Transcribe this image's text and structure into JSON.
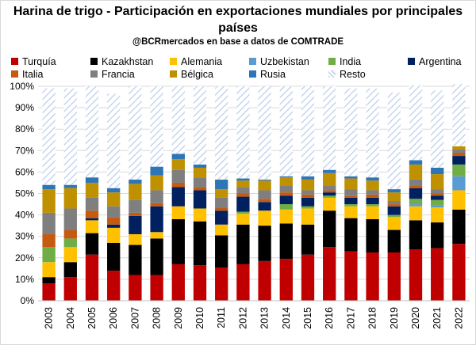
{
  "title": "Harina de trigo - Participación en exportaciones mundiales por principales países",
  "subtitle": "@BCRmercados en base a datos de COMTRADE",
  "chart_data": {
    "type": "bar",
    "stacked": true,
    "categories": [
      "2003",
      "2004",
      "2005",
      "2006",
      "2007",
      "2008",
      "2009",
      "2010",
      "2011",
      "2012",
      "2013",
      "2014",
      "2015",
      "2016",
      "2017",
      "2018",
      "2019",
      "2020",
      "2021",
      "2022"
    ],
    "ylim": [
      0,
      100
    ],
    "yticks": [
      "0%",
      "10%",
      "20%",
      "30%",
      "40%",
      "50%",
      "60%",
      "70%",
      "80%",
      "90%",
      "100%"
    ],
    "grid": true,
    "legend_position": "top",
    "series": [
      {
        "name": "Turquía",
        "color": "#c00000",
        "values": [
          8,
          11,
          21.5,
          14,
          12,
          12,
          17,
          16.5,
          15.5,
          17,
          18.5,
          19.5,
          21.5,
          25,
          23,
          22.5,
          22.5,
          24,
          24.5,
          26.5
        ]
      },
      {
        "name": "Kazakhstan",
        "color": "#000000",
        "values": [
          3,
          7,
          10,
          13,
          14,
          17,
          21,
          20.5,
          15,
          18.5,
          16.5,
          16.5,
          14,
          17,
          15.5,
          15.5,
          10.5,
          13.5,
          12,
          16
        ]
      },
      {
        "name": "Alemania",
        "color": "#ffc000",
        "values": [
          7,
          7,
          6,
          7,
          5,
          3,
          6,
          6,
          5,
          5,
          7,
          6.5,
          7.5,
          6,
          5.5,
          6,
          6,
          6.5,
          7,
          9
        ]
      },
      {
        "name": "Uzbekistan",
        "color": "#5b9bd5",
        "values": [
          0,
          0,
          0,
          0,
          0,
          0,
          0,
          0,
          0,
          0,
          0,
          0,
          0,
          0,
          0,
          0,
          0,
          1,
          1,
          6.5
        ]
      },
      {
        "name": "India",
        "color": "#70ad47",
        "values": [
          7,
          4,
          0,
          0,
          0,
          0,
          0,
          0,
          0,
          1,
          0,
          2.5,
          1,
          1,
          1,
          1,
          1,
          2.5,
          2.5,
          5.5
        ]
      },
      {
        "name": "Argentina",
        "color": "#002060",
        "values": [
          0,
          0,
          1,
          1.5,
          8.5,
          12,
          9,
          8.5,
          6.5,
          7,
          4,
          4,
          4,
          1.5,
          3,
          3,
          4,
          5,
          2,
          4
        ]
      },
      {
        "name": "Italia",
        "color": "#c55a11",
        "values": [
          6,
          4,
          3.5,
          3.5,
          1.5,
          1.5,
          2,
          1.5,
          1.5,
          1.5,
          1.5,
          1.5,
          1.5,
          1,
          1,
          1.5,
          1,
          1,
          1,
          1.5
        ]
      },
      {
        "name": "Francia",
        "color": "#7f7f7f",
        "values": [
          10,
          10,
          6,
          5,
          6,
          6,
          6,
          4.5,
          4.5,
          3,
          4,
          3,
          2,
          2,
          3,
          2,
          1.5,
          3,
          2,
          1.5
        ]
      },
      {
        "name": "Bélgica",
        "color": "#bf9000",
        "values": [
          11,
          9.5,
          7,
          6.5,
          7.5,
          7,
          5,
          4.5,
          4,
          3,
          4.5,
          4,
          5,
          6,
          5,
          4.5,
          4,
          7,
          7,
          1.5
        ]
      },
      {
        "name": "Rusia",
        "color": "#2e75b6",
        "values": [
          2,
          1.5,
          2.5,
          2,
          2,
          4,
          2.5,
          1.5,
          4.5,
          1,
          0.5,
          0.5,
          1.5,
          1.5,
          1,
          1.5,
          1.5,
          2,
          3,
          0
        ]
      },
      {
        "name": "Resto",
        "color": "#dae3f3",
        "pattern": "diagonal",
        "values": [
          45,
          45,
          42.5,
          44,
          43.5,
          37.5,
          31.5,
          36.5,
          43.5,
          43,
          43.5,
          42,
          42,
          39,
          41,
          41.5,
          45,
          35,
          36,
          29
        ]
      }
    ]
  }
}
